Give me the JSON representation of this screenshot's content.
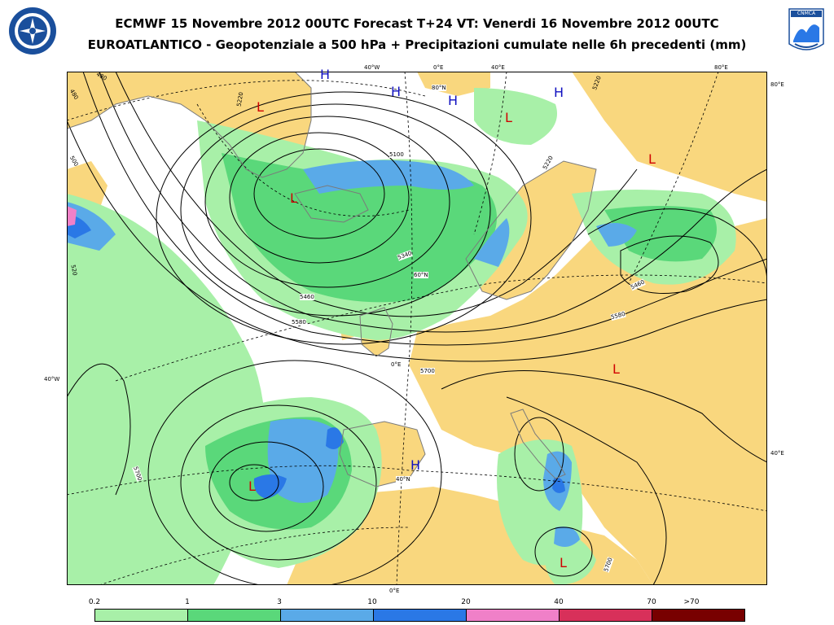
{
  "header": {
    "title_line1": "ECMWF 15 Novembre 2012 00UTC Forecast T+24 VT: Venerdi 16 Novembre 2012 00UTC",
    "title_line2": "EUROATLANTICO - Geopotenziale a 500 hPa + Precipitazioni cumulate nelle 6h precedenti (mm)"
  },
  "logos": {
    "left": "nato-emblem-icon",
    "right": "cnmca-logo-icon",
    "right_text": "CNMCA"
  },
  "colors": {
    "land": "#f9d77e",
    "sea": "#ffffff",
    "precip_0_2": "#a8f0a8",
    "precip_1": "#5ad87a",
    "precip_3": "#5aaae8",
    "precip_10": "#2a78e6",
    "precip_20": "#f080c8",
    "precip_40": "#d8305a",
    "precip_70": "#780000",
    "pressure_high": "#1010c0",
    "pressure_low": "#d00000",
    "coast": "#7a7a7a"
  },
  "map": {
    "lon_labels_top": [
      "40°W",
      "0°E",
      "40°E",
      "80°E"
    ],
    "lon_label_bottom": "0°E",
    "lat_label_left": "40°W",
    "lat_labels_right": [
      "80°E",
      "40°E"
    ],
    "inner_lat_labels": [
      "80°N",
      "60°N",
      "40°N"
    ],
    "inner_lon_label": "0°E",
    "contour_labels": [
      "5220",
      "5100",
      "5340",
      "5460",
      "5580",
      "5700",
      "5700",
      "5700",
      "5220",
      "5220",
      "5460",
      "5580",
      "480",
      "500",
      "520",
      "480"
    ],
    "pressure_systems": [
      {
        "type": "L"
      },
      {
        "type": "L"
      },
      {
        "type": "L"
      },
      {
        "type": "L"
      },
      {
        "type": "L"
      },
      {
        "type": "L"
      },
      {
        "type": "L"
      },
      {
        "type": "H"
      },
      {
        "type": "H"
      },
      {
        "type": "H"
      },
      {
        "type": "H"
      },
      {
        "type": "H"
      }
    ]
  },
  "legend": {
    "thresholds": [
      "0.2",
      "1",
      "3",
      "10",
      "20",
      "40",
      "70",
      ">70"
    ]
  }
}
